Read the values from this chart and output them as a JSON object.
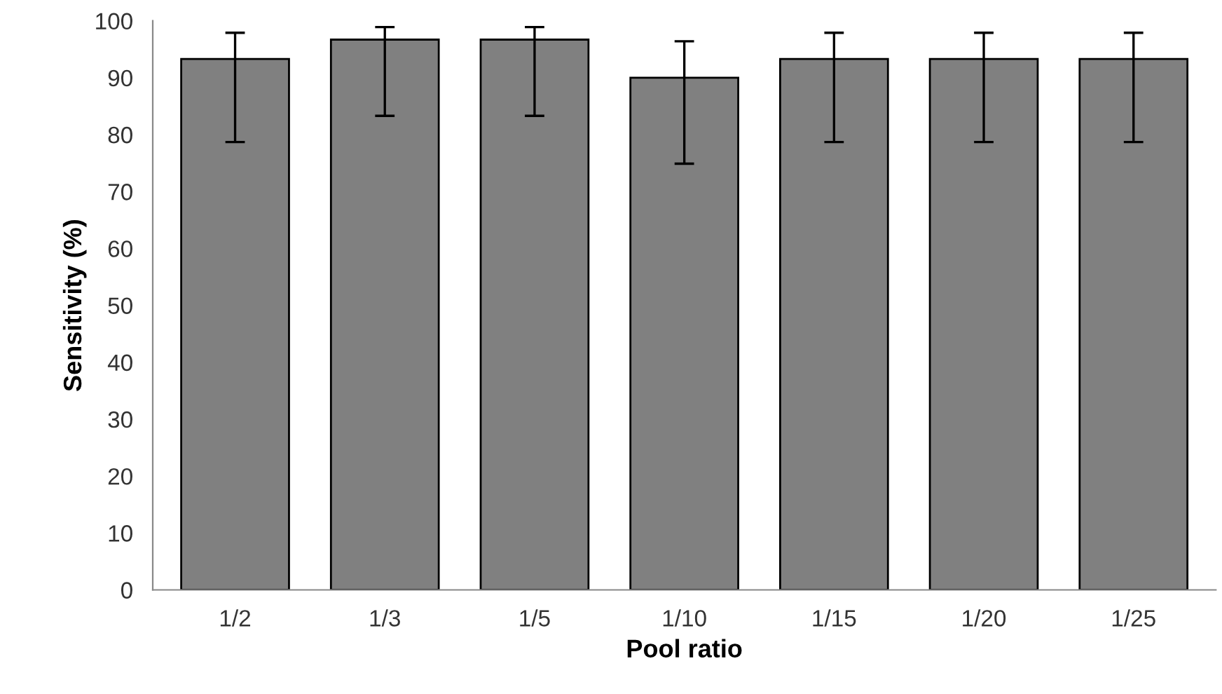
{
  "chart_data": {
    "type": "bar",
    "xlabel": "Pool ratio",
    "ylabel": "Sensitivity (%)",
    "categories": [
      "1/2",
      "1/3",
      "1/5",
      "1/10",
      "1/15",
      "1/20",
      "1/25"
    ],
    "values": [
      93.3,
      96.7,
      96.7,
      90,
      93.3,
      93.3,
      93.3
    ],
    "errors": [
      [
        78.7,
        97.9
      ],
      [
        83.3,
        98.9
      ],
      [
        83.3,
        98.9
      ],
      [
        74.9,
        96.4
      ],
      [
        78.7,
        97.9
      ],
      [
        78.7,
        97.9
      ],
      [
        78.7,
        97.9
      ]
    ],
    "color": "#808080",
    "ylim": [
      0,
      100
    ],
    "yticks": [
      0,
      10,
      20,
      30,
      40,
      50,
      60,
      70,
      80,
      90,
      100
    ],
    "grid": false
  }
}
